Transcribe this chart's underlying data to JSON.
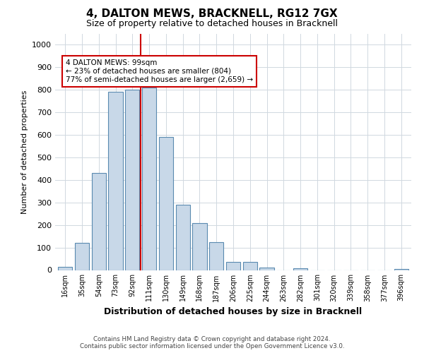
{
  "title": "4, DALTON MEWS, BRACKNELL, RG12 7GX",
  "subtitle": "Size of property relative to detached houses in Bracknell",
  "xlabel": "Distribution of detached houses by size in Bracknell",
  "ylabel": "Number of detached properties",
  "categories": [
    "16sqm",
    "35sqm",
    "54sqm",
    "73sqm",
    "92sqm",
    "111sqm",
    "130sqm",
    "149sqm",
    "168sqm",
    "187sqm",
    "206sqm",
    "225sqm",
    "244sqm",
    "263sqm",
    "282sqm",
    "301sqm",
    "320sqm",
    "339sqm",
    "358sqm",
    "377sqm",
    "396sqm"
  ],
  "values": [
    15,
    120,
    430,
    790,
    800,
    810,
    590,
    290,
    210,
    125,
    35,
    35,
    10,
    0,
    8,
    0,
    0,
    0,
    0,
    0,
    5
  ],
  "bar_color": "#c8d8e8",
  "bar_edge_color": "#5a8ab0",
  "bar_edge_width": 0.8,
  "grid_color": "#d0d8e0",
  "background_color": "#ffffff",
  "annotation_text": "4 DALTON MEWS: 99sqm\n← 23% of detached houses are smaller (804)\n77% of semi-detached houses are larger (2,659) →",
  "vline_x": 4.5,
  "vline_color": "#cc0000",
  "annotation_box_edgecolor": "#cc0000",
  "ylim": [
    0,
    1050
  ],
  "yticks": [
    0,
    100,
    200,
    300,
    400,
    500,
    600,
    700,
    800,
    900,
    1000
  ],
  "footer_line1": "Contains HM Land Registry data © Crown copyright and database right 2024.",
  "footer_line2": "Contains public sector information licensed under the Open Government Licence v3.0."
}
